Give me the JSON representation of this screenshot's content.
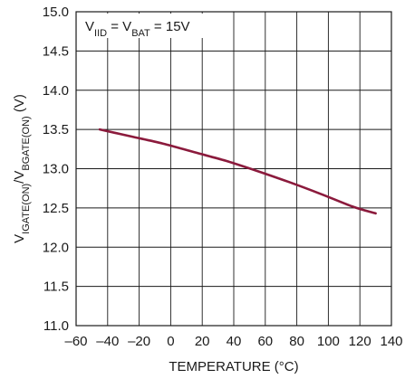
{
  "chart_data": {
    "type": "line",
    "xlabel": "TEMPERATURE (°C)",
    "ylabel": {
      "parts": [
        {
          "text": "V",
          "sub": false
        },
        {
          "text": "IGATE(ON)",
          "sub": true
        },
        {
          "text": "/V",
          "sub": false
        },
        {
          "text": "BGATE(ON)",
          "sub": true
        },
        {
          "text": " (V)",
          "sub": false
        }
      ]
    },
    "annotation": {
      "parts": [
        {
          "text": "V",
          "sub": false
        },
        {
          "text": "IID",
          "sub": true
        },
        {
          "text": " = V",
          "sub": false
        },
        {
          "text": "BAT",
          "sub": true
        },
        {
          "text": " = 15V",
          "sub": false
        }
      ]
    },
    "xlim": [
      -60,
      140
    ],
    "ylim": [
      11.0,
      15.0
    ],
    "xticks": [
      -60,
      -40,
      -20,
      0,
      20,
      40,
      60,
      80,
      100,
      120,
      140
    ],
    "xtick_labels": [
      "–60",
      "–40",
      "–20",
      "0",
      "20",
      "40",
      "60",
      "80",
      "100",
      "120",
      "140"
    ],
    "yticks": [
      11.0,
      11.5,
      12.0,
      12.5,
      13.0,
      13.5,
      14.0,
      14.5,
      15.0
    ],
    "ytick_labels": [
      "11.0",
      "11.5",
      "12.0",
      "12.5",
      "13.0",
      "13.5",
      "14.0",
      "14.5",
      "15.0"
    ],
    "grid": true,
    "series": [
      {
        "color": "#8b1a3c",
        "x": [
          -45,
          -25,
          -5,
          15,
          35,
          55,
          75,
          95,
          115,
          130
        ],
        "y": [
          13.5,
          13.41,
          13.32,
          13.21,
          13.1,
          12.97,
          12.83,
          12.68,
          12.52,
          12.43
        ]
      }
    ]
  }
}
